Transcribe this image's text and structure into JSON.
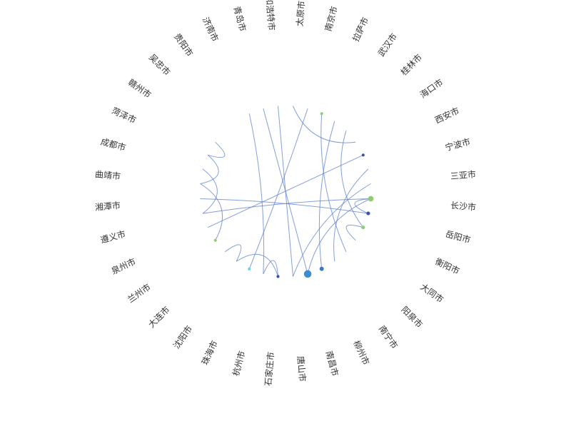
{
  "chart_data": {
    "type": "graph",
    "layout": "circular",
    "title": "",
    "link_color": "#5b7fcf",
    "nodes": [
      {
        "name": "长沙市",
        "value": 6,
        "color": "#91cc75"
      },
      {
        "name": "岳阳市",
        "value": 3,
        "color": "#3a4fb0"
      },
      {
        "name": "衡阳市",
        "value": 3,
        "color": "#91cc75"
      },
      {
        "name": "大同市",
        "value": 0,
        "color": "#5470c6"
      },
      {
        "name": "阳泉市",
        "value": 0,
        "color": "#5470c6"
      },
      {
        "name": "南宁市",
        "value": 0,
        "color": "#5470c6"
      },
      {
        "name": "柳州市",
        "value": 4,
        "color": "#3d7ab8"
      },
      {
        "name": "南昌市",
        "value": 9,
        "color": "#3a8ed0"
      },
      {
        "name": "唐山市",
        "value": 0,
        "color": "#5470c6"
      },
      {
        "name": "石家庄市",
        "value": 2,
        "color": "#3a4fb0"
      },
      {
        "name": "杭州市",
        "value": 0,
        "color": "#5470c6"
      },
      {
        "name": "珠海市",
        "value": 2,
        "color": "#5ad8e6"
      },
      {
        "name": "沈阳市",
        "value": 0,
        "color": "#5470c6"
      },
      {
        "name": "大连市",
        "value": 0,
        "color": "#5470c6"
      },
      {
        "name": "兰州市",
        "value": 2,
        "color": "#91cc75"
      },
      {
        "name": "泉州市",
        "value": 0,
        "color": "#5470c6"
      },
      {
        "name": "遵义市",
        "value": 0,
        "color": "#5470c6"
      },
      {
        "name": "湘潭市",
        "value": 0,
        "color": "#5470c6"
      },
      {
        "name": "曲靖市",
        "value": 0,
        "color": "#5470c6"
      },
      {
        "name": "成都市",
        "value": 0,
        "color": "#5470c6"
      },
      {
        "name": "菏泽市",
        "value": 0,
        "color": "#5470c6"
      },
      {
        "name": "赣州市",
        "value": 0,
        "color": "#5470c6"
      },
      {
        "name": "吴忠市",
        "value": 0,
        "color": "#5470c6"
      },
      {
        "name": "贵阳市",
        "value": 0,
        "color": "#5470c6"
      },
      {
        "name": "济南市",
        "value": 0,
        "color": "#5470c6"
      },
      {
        "name": "青岛市",
        "value": 0,
        "color": "#5470c6"
      },
      {
        "name": "和浩特市",
        "value": 0,
        "color": "#5470c6"
      },
      {
        "name": "太原市",
        "value": 0,
        "color": "#5470c6"
      },
      {
        "name": "南京市",
        "value": 0,
        "color": "#5470c6"
      },
      {
        "name": "拉萨市",
        "value": 2,
        "color": "#91cc75"
      },
      {
        "name": "武汉市",
        "value": 0,
        "color": "#5470c6"
      },
      {
        "name": "桂林市",
        "value": 0,
        "color": "#5470c6"
      },
      {
        "name": "海口市",
        "value": 0,
        "color": "#5470c6"
      },
      {
        "name": "西安市",
        "value": 2,
        "color": "#3a4fb0"
      },
      {
        "name": "宁波市",
        "value": 0,
        "color": "#5470c6"
      },
      {
        "name": "三亚市",
        "value": 0,
        "color": "#5470c6"
      }
    ],
    "links": [
      [
        "长沙市",
        "岳阳市"
      ],
      [
        "长沙市",
        "遵义市"
      ],
      [
        "长沙市",
        "南昌市"
      ],
      [
        "岳阳市",
        "湘潭市"
      ],
      [
        "衡阳市",
        "大同市"
      ],
      [
        "衡阳市",
        "桂林市"
      ],
      [
        "南宁市",
        "宁波市"
      ],
      [
        "柳州市",
        "武汉市"
      ],
      [
        "南昌市",
        "青岛市"
      ],
      [
        "唐山市",
        "三亚市"
      ],
      [
        "石家庄市",
        "杭州市"
      ],
      [
        "石家庄市",
        "沈阳市"
      ],
      [
        "杭州市",
        "济南市"
      ],
      [
        "沈阳市",
        "大连市"
      ],
      [
        "兰州市",
        "曲靖市"
      ],
      [
        "泉州市",
        "西安市"
      ],
      [
        "遵义市",
        "成都市"
      ],
      [
        "曲靖市",
        "菏泽市"
      ],
      [
        "菏泽市",
        "赣州市"
      ],
      [
        "和浩特市",
        "唐山市"
      ],
      [
        "太原市",
        "海口市"
      ],
      [
        "南京市",
        "珠海市"
      ],
      [
        "拉萨市",
        "阳泉市"
      ]
    ]
  }
}
